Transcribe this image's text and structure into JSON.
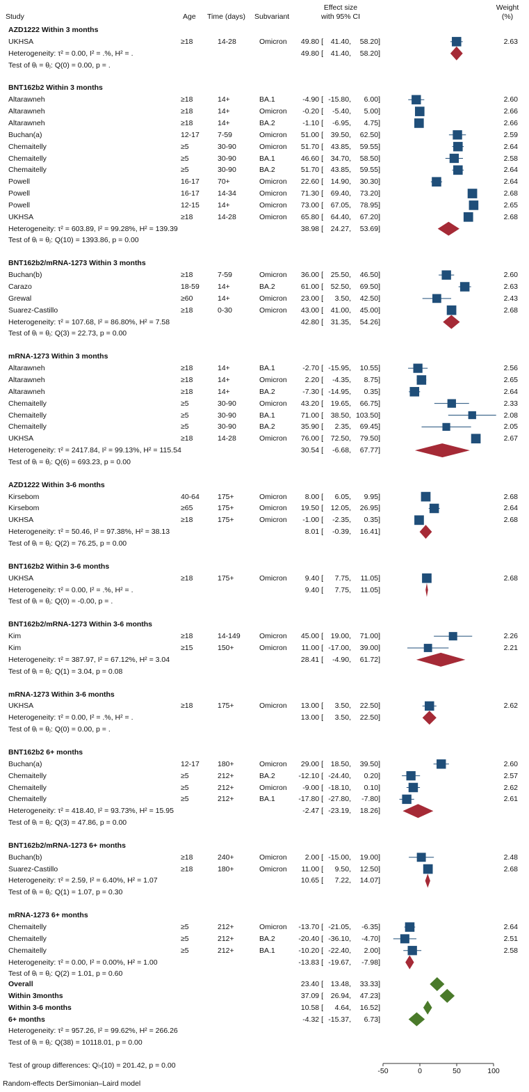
{
  "header": {
    "study": "Study",
    "age": "Age",
    "time": "Time (days)",
    "subvariant": "Subvariant",
    "effect_line1": "Effect size",
    "effect_line2": "with 95% CI",
    "weight_line1": "Weight",
    "weight_line2": "(%)"
  },
  "footer": "Random-effects DerSimonian–Laird model",
  "chart_data": {
    "type": "forest",
    "xlim": [
      -50,
      100
    ],
    "x_ticks": [
      -50,
      0,
      50,
      100
    ],
    "grid": false,
    "colors": {
      "study_box": "#1f4e79",
      "subgroup_diamond": "#a52a36",
      "overall_diamond": "#4a7a2a"
    },
    "groups": [
      {
        "title": "AZD1222 Within 3 months",
        "studies": [
          [
            "UKHSA",
            "≥18",
            "14-28",
            "Omicron",
            49.8,
            41.4,
            58.2,
            2.63
          ]
        ],
        "pooled": [
          49.8,
          41.4,
          58.2
        ],
        "het": "Heterogeneity: τ² = 0.00, I² = .%, H² = .",
        "test": "Test of θᵢ = θⱼ: Q(0) = 0.00, p = ."
      },
      {
        "title": "BNT162b2 Within 3 months",
        "studies": [
          [
            "Altarawneh",
            "≥18",
            "14+",
            "BA.1",
            -4.9,
            -15.8,
            6.0,
            2.6
          ],
          [
            "Altarawneh",
            "≥18",
            "14+",
            "Omicron",
            -0.2,
            -5.4,
            5.0,
            2.66
          ],
          [
            "Altarawneh",
            "≥18",
            "14+",
            "BA.2",
            -1.1,
            -6.95,
            4.75,
            2.66
          ],
          [
            "Buchan(a)",
            "12-17",
            "7-59",
            "Omicron",
            51.0,
            39.5,
            62.5,
            2.59
          ],
          [
            "Chemaitelly",
            "≥5",
            "30-90",
            "Omicron",
            51.7,
            43.85,
            59.55,
            2.64
          ],
          [
            "Chemaitelly",
            "≥5",
            "30-90",
            "BA.1",
            46.6,
            34.7,
            58.5,
            2.58
          ],
          [
            "Chemaitelly",
            "≥5",
            "30-90",
            "BA.2",
            51.7,
            43.85,
            59.55,
            2.64
          ],
          [
            "Powell",
            "16-17",
            "70+",
            "Omicron",
            22.6,
            14.9,
            30.3,
            2.64
          ],
          [
            "Powell",
            "16-17",
            "14-34",
            "Omicron",
            71.3,
            69.4,
            73.2,
            2.68
          ],
          [
            "Powell",
            "12-15",
            "14+",
            "Omicron",
            73.0,
            67.05,
            78.95,
            2.65
          ],
          [
            "UKHSA",
            "≥18",
            "14-28",
            "Omicron",
            65.8,
            64.4,
            67.2,
            2.68
          ]
        ],
        "pooled": [
          38.98,
          24.27,
          53.69
        ],
        "het": "Heterogeneity: τ² = 603.89, I² = 99.28%, H² = 139.39",
        "test": "Test of θᵢ = θⱼ: Q(10) = 1393.86, p = 0.00"
      },
      {
        "title": "BNT162b2/mRNA-1273 Within 3 months",
        "studies": [
          [
            "Buchan(b)",
            "≥18",
            "7-59",
            "Omicron",
            36.0,
            25.5,
            46.5,
            2.6
          ],
          [
            "Carazo",
            "18-59",
            "14+",
            "BA.2",
            61.0,
            52.5,
            69.5,
            2.63
          ],
          [
            "Grewal",
            "≥60",
            "14+",
            "Omicron",
            23.0,
            3.5,
            42.5,
            2.43
          ],
          [
            "Suarez-Castillo",
            "≥18",
            "0-30",
            "Omicron",
            43.0,
            41.0,
            45.0,
            2.68
          ]
        ],
        "pooled": [
          42.8,
          31.35,
          54.26
        ],
        "het": "Heterogeneity: τ² = 107.68, I² = 86.80%, H² = 7.58",
        "test": "Test of θᵢ = θⱼ: Q(3) = 22.73, p = 0.00"
      },
      {
        "title": "mRNA-1273 Within 3 months",
        "studies": [
          [
            "Altarawneh",
            "≥18",
            "14+",
            "BA.1",
            -2.7,
            -15.95,
            10.55,
            2.56
          ],
          [
            "Altarawneh",
            "≥18",
            "14+",
            "Omicron",
            2.2,
            -4.35,
            8.75,
            2.65
          ],
          [
            "Altarawneh",
            "≥18",
            "14+",
            "BA.2",
            -7.3,
            -14.95,
            0.35,
            2.64
          ],
          [
            "Chemaitelly",
            "≥5",
            "30-90",
            "Omicron",
            43.2,
            19.65,
            66.75,
            2.33
          ],
          [
            "Chemaitelly",
            "≥5",
            "30-90",
            "BA.1",
            71.0,
            38.5,
            103.5,
            2.08
          ],
          [
            "Chemaitelly",
            "≥5",
            "30-90",
            "BA.2",
            35.9,
            2.35,
            69.45,
            2.05
          ],
          [
            "UKHSA",
            "≥18",
            "14-28",
            "Omicron",
            76.0,
            72.5,
            79.5,
            2.67
          ]
        ],
        "pooled": [
          30.54,
          -6.68,
          67.77
        ],
        "het": "Heterogeneity: τ² = 2417.84, I² = 99.13%, H² = 115.54",
        "test": "Test of θᵢ = θⱼ: Q(6) = 693.23, p = 0.00"
      },
      {
        "title": "AZD1222 Within 3-6 months",
        "studies": [
          [
            "Kirsebom",
            "40-64",
            "175+",
            "Omicron",
            8.0,
            6.05,
            9.95,
            2.68
          ],
          [
            "Kirsebom",
            "≥65",
            "175+",
            "Omicron",
            19.5,
            12.05,
            26.95,
            2.64
          ],
          [
            "UKHSA",
            "≥18",
            "175+",
            "Omicron",
            -1.0,
            -2.35,
            0.35,
            2.68
          ]
        ],
        "pooled": [
          8.01,
          -0.39,
          16.41
        ],
        "het": "Heterogeneity: τ² = 50.46, I² = 97.38%, H² = 38.13",
        "test": "Test of θᵢ = θⱼ: Q(2) = 76.25, p = 0.00"
      },
      {
        "title": "BNT162b2 Within 3-6 months",
        "studies": [
          [
            "UKHSA",
            "≥18",
            "175+",
            "Omicron",
            9.4,
            7.75,
            11.05,
            2.68
          ]
        ],
        "pooled": [
          9.4,
          7.75,
          11.05
        ],
        "het": "Heterogeneity: τ² = 0.00, I² = .%, H² = .",
        "test": "Test of θᵢ = θⱼ: Q(0) = -0.00, p = ."
      },
      {
        "title": "BNT162b2/mRNA-1273 Within 3-6 months",
        "studies": [
          [
            "Kim",
            "≥18",
            "14-149",
            "Omicron",
            45.0,
            19.0,
            71.0,
            2.26
          ],
          [
            "Kim",
            "≥15",
            "150+",
            "Omicron",
            11.0,
            -17.0,
            39.0,
            2.21
          ]
        ],
        "pooled": [
          28.41,
          -4.9,
          61.72
        ],
        "het": "Heterogeneity: τ² = 387.97, I² = 67.12%, H² = 3.04",
        "test": "Test of θᵢ = θⱼ: Q(1) = 3.04, p = 0.08"
      },
      {
        "title": "mRNA-1273 Within 3-6 months",
        "studies": [
          [
            "UKHSA",
            "≥18",
            "175+",
            "Omicron",
            13.0,
            3.5,
            22.5,
            2.62
          ]
        ],
        "pooled": [
          13.0,
          3.5,
          22.5
        ],
        "het": "Heterogeneity: τ² = 0.00, I² = .%, H² = .",
        "test": "Test of θᵢ = θⱼ: Q(0) = 0.00, p = ."
      },
      {
        "title": "BNT162b2 6+ months",
        "studies": [
          [
            "Buchan(a)",
            "12-17",
            "180+",
            "Omicron",
            29.0,
            18.5,
            39.5,
            2.6
          ],
          [
            "Chemaitelly",
            "≥5",
            "212+",
            "BA.2",
            -12.1,
            -24.4,
            0.2,
            2.57
          ],
          [
            "Chemaitelly",
            "≥5",
            "212+",
            "Omicron",
            -9.0,
            -18.1,
            0.1,
            2.62
          ],
          [
            "Chemaitelly",
            "≥5",
            "212+",
            "BA.1",
            -17.8,
            -27.8,
            -7.8,
            2.61
          ]
        ],
        "pooled": [
          -2.47,
          -23.19,
          18.26
        ],
        "het": "Heterogeneity: τ² = 418.40, I² = 93.73%, H² = 15.95",
        "test": "Test of θᵢ = θⱼ: Q(3) = 47.86, p = 0.00"
      },
      {
        "title": "BNT162b2/mRNA-1273 6+ months",
        "studies": [
          [
            "Buchan(b)",
            "≥18",
            "240+",
            "Omicron",
            2.0,
            -15.0,
            19.0,
            2.48
          ],
          [
            "Suarez-Castillo",
            "≥18",
            "180+",
            "Omicron",
            11.0,
            9.5,
            12.5,
            2.68
          ]
        ],
        "pooled": [
          10.65,
          7.22,
          14.07
        ],
        "het": "Heterogeneity: τ² = 2.59, I² = 6.40%, H² = 1.07",
        "test": "Test of θᵢ = θⱼ: Q(1) = 1.07, p = 0.30"
      },
      {
        "title": "mRNA-1273 6+ months",
        "studies": [
          [
            "Chemaitelly",
            "≥5",
            "212+",
            "Omicron",
            -13.7,
            -21.05,
            -6.35,
            2.64
          ],
          [
            "Chemaitelly",
            "≥5",
            "212+",
            "BA.2",
            -20.4,
            -36.1,
            -4.7,
            2.51
          ],
          [
            "Chemaitelly",
            "≥5",
            "212+",
            "BA.1",
            -10.2,
            -22.4,
            2.0,
            2.58
          ]
        ],
        "pooled": [
          -13.83,
          -19.67,
          -7.98
        ],
        "het": "Heterogeneity: τ² = 0.00, I² = 0.00%, H² = 1.00",
        "test": "Test of θᵢ = θⱼ: Q(2) = 1.01, p = 0.60"
      }
    ],
    "overall": [
      {
        "label": "Overall",
        "es": 23.4,
        "lo": 13.48,
        "hi": 33.33
      },
      {
        "label": "Within 3months",
        "es": 37.09,
        "lo": 26.94,
        "hi": 47.23
      },
      {
        "label": "Within 3-6 months",
        "es": 10.58,
        "lo": 4.64,
        "hi": 16.52
      },
      {
        "label": "6+ months",
        "es": -4.32,
        "lo": -15.37,
        "hi": 6.73
      }
    ],
    "overall_het": "Heterogeneity: τ² = 957.26, I² = 99.62%, H² = 266.26",
    "overall_test": "Test of θᵢ = θⱼ: Q(38) = 10118.01, p = 0.00",
    "group_test": "Test of group differences: Q♭(10) = 201.42, p = 0.00"
  }
}
